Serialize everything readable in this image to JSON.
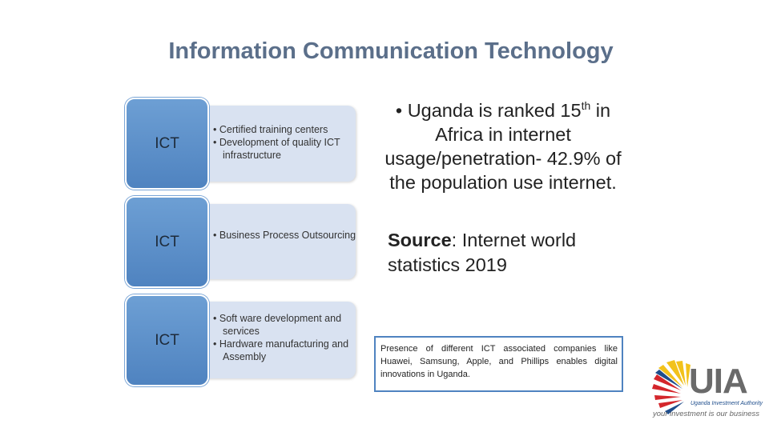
{
  "title": "Information Communication Technology",
  "rows": [
    {
      "tab": "ICT",
      "bullets": [
        "Certified training centers",
        "Development of quality ICT infrastructure"
      ]
    },
    {
      "tab": "ICT",
      "bullets": [
        "Business Process Outsourcing"
      ]
    },
    {
      "tab": "ICT",
      "bullets": [
        "Soft ware development and services",
        "Hardware manufacturing and Assembly"
      ]
    }
  ],
  "stat": {
    "pre": "Uganda is ranked 15",
    "sup": "th",
    "post": " in Africa in internet usage/penetration- 42.9% of the population use internet."
  },
  "source": {
    "label": "Source",
    "text": ":  Internet  world statistics 2019"
  },
  "companies": "Presence of different ICT associated companies like Huawei, Samsung, Apple, and Phillips enables digital innovations in Uganda.",
  "logo": {
    "name": "UIA",
    "subtitle": "Uganda Investment Authority",
    "tagline": "your investment is our business",
    "colors": {
      "red": "#d4262b",
      "yellow": "#f2c21b",
      "blue": "#1f4e8c",
      "grey": "#6a6a6a"
    }
  }
}
